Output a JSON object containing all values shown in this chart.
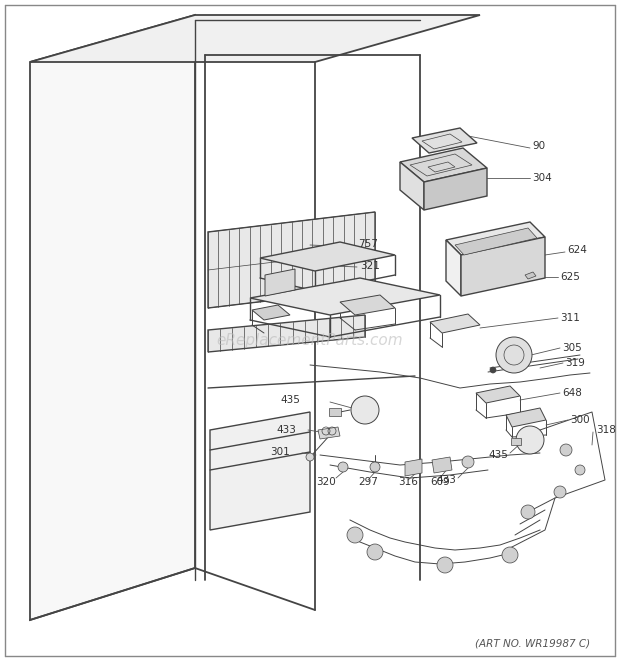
{
  "watermark": "eReplacementParts.com",
  "art_no": "(ART NO. WR19987 C)",
  "bg_color": "#ffffff",
  "fig_width": 6.2,
  "fig_height": 6.61,
  "dpi": 100,
  "line_color": "#444444",
  "text_color": "#333333",
  "watermark_color": "#bbbbbb",
  "watermark_fontsize": 11,
  "label_fontsize": 7.5,
  "art_no_fontsize": 7.5
}
